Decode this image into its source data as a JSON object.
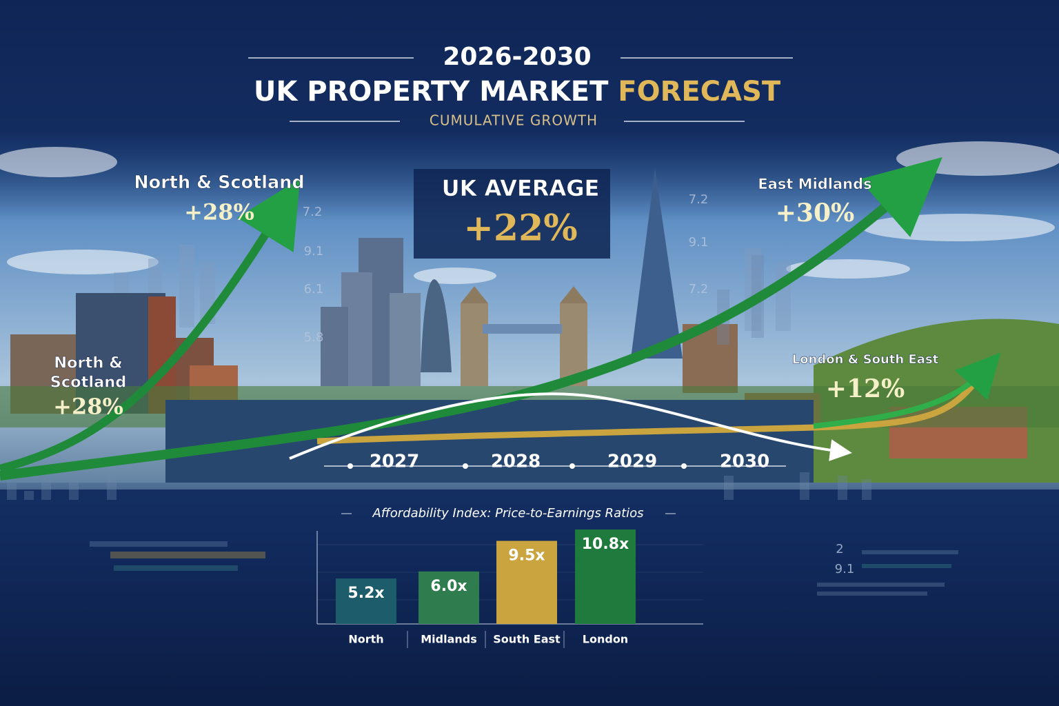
{
  "header": {
    "years": "2026-2030",
    "title": "UK PROPERTY MARKET",
    "title_highlight": "FORECAST",
    "subtitle": "CUMULATIVE GROWTH"
  },
  "callouts": [
    {
      "lines": [
        "North & Scotland"
      ],
      "value": "+28%"
    },
    {
      "lines": [
        "North &",
        "Scotland"
      ],
      "value": "+28%"
    },
    {
      "lines": [
        "UK AVERAGE"
      ],
      "value": "+22%"
    },
    {
      "lines": [
        "East Midlands"
      ],
      "value": "+30%"
    },
    {
      "lines": [
        "London & South East"
      ],
      "value": "+12%"
    }
  ],
  "timeline": [
    "2027",
    "2028",
    "2029",
    "2030"
  ],
  "decor_labels": [
    "7.2",
    "9.1",
    "6.1",
    "5.8",
    "7.2",
    "9.1",
    "7.2",
    "2",
    "9.1"
  ],
  "chart_data": {
    "type": "bar",
    "title": "Affordability Index: Price-to-Earnings Ratios",
    "categories": [
      "North",
      "Midlands",
      "South East",
      "London"
    ],
    "values": [
      5.2,
      6.0,
      9.5,
      10.8
    ],
    "value_labels": [
      "5.2x",
      "6.0x",
      "9.5x",
      "10.8x"
    ],
    "colors": [
      "#1d5d6b",
      "#2f7d4e",
      "#c9a43f",
      "#1f7a3d"
    ]
  }
}
